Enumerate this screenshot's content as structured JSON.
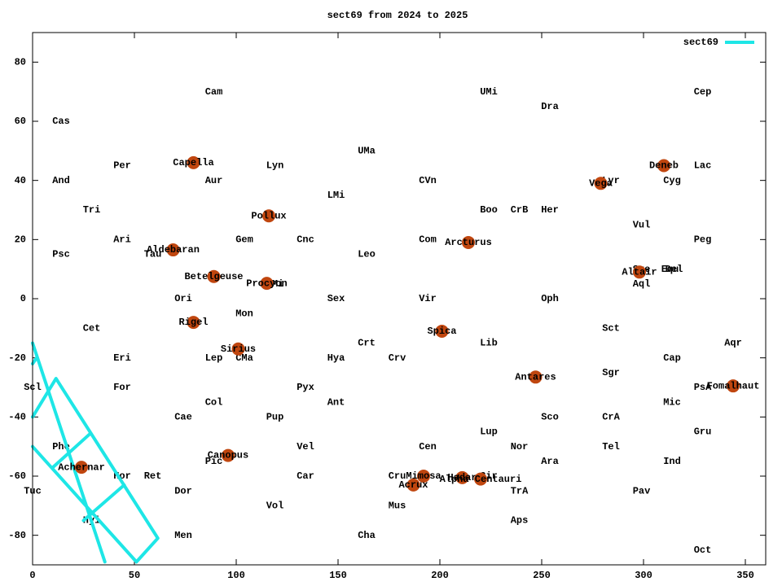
{
  "chart_data": {
    "type": "scatter",
    "title": "sect69 from 2024 to 2025",
    "xlim": [
      0,
      360
    ],
    "ylim": [
      -90,
      90
    ],
    "xticks": [
      0,
      50,
      100,
      150,
      200,
      250,
      300,
      350
    ],
    "yticks": [
      -80,
      -60,
      -40,
      -20,
      0,
      20,
      40,
      60,
      80
    ],
    "legend": "top-right",
    "series": [
      {
        "name": "sect69",
        "color": "#1ee6e6",
        "x": [
          0,
          35.5,
          null,
          0,
          51,
          61.5,
          11.5,
          0,
          null,
          28.5,
          10,
          null,
          45,
          25,
          null,
          0,
          2
        ],
        "values": [
          -15,
          -89,
          null,
          -50,
          -89,
          -81,
          -27,
          -40,
          null,
          -45.5,
          -57,
          null,
          -63,
          -75,
          null,
          -22,
          -20
        ]
      }
    ],
    "stars": {
      "color": "#c0460f",
      "labels": [
        "Capella",
        "Deneb",
        "Vega",
        "Pollux",
        "Arcturus",
        "Aldebaran",
        "Altair",
        "Betelgeuse",
        "Procyon",
        "Rigel",
        "Spica",
        "Sirius",
        "Antares",
        "Fomalhaut",
        "Canopus",
        "Achernar",
        "Mimosa",
        "Hadar",
        "Alpha Centauri",
        "Acrux"
      ],
      "x": [
        79,
        310,
        279,
        116,
        214,
        69,
        298,
        89,
        115,
        79,
        201,
        101,
        247,
        344,
        96,
        24,
        192,
        211,
        220,
        187
      ],
      "values": [
        46,
        45,
        39,
        28,
        19,
        16.5,
        9,
        7.5,
        5.2,
        -8,
        -11,
        -17,
        -26.5,
        -29.5,
        -53,
        -57,
        -60,
        -60.5,
        -61,
        -63
      ]
    },
    "constellations": {
      "labels": [
        "Cam",
        "UMi",
        "Cep",
        "Dra",
        "Cas",
        "UMa",
        "Per",
        "Lac",
        "Lyn",
        "And",
        "Aur",
        "CVn",
        "Lyr",
        "Cyg",
        "LMi",
        "Tri",
        "Boo",
        "CrB",
        "Her",
        "Vul",
        "Ari",
        "Gem",
        "Cnc",
        "Com",
        "Peg",
        "Psc",
        "Tau",
        "Leo",
        "Sge",
        "Del",
        "Equ",
        "Aql",
        "CMi",
        "Ori",
        "Sex",
        "Vir",
        "Oph",
        "Mon",
        "Cet",
        "Sct",
        "Crt",
        "Lib",
        "Aqr",
        "Eri",
        "Lep",
        "CMa",
        "Hya",
        "Crv",
        "Cap",
        "Sgr",
        "Scl",
        "For",
        "Pyx",
        "PsA",
        "Col",
        "Ant",
        "Mic",
        "Cae",
        "Pup",
        "Sco",
        "CrA",
        "Lup",
        "Gru",
        "Phe",
        "Vel",
        "Cen",
        "Nor",
        "Tel",
        "Pic",
        "Ara",
        "Ind",
        "Hor",
        "Ret",
        "Car",
        "Cru",
        "Cir",
        "Tuc",
        "Dor",
        "TrA",
        "Pav",
        "Mus",
        "Vol",
        "Hyi",
        "Aps",
        "Men",
        "Cha",
        "Oct"
      ],
      "x": [
        89,
        224,
        329,
        254,
        14,
        164,
        44,
        329,
        119,
        14,
        89,
        194,
        284,
        314,
        149,
        29,
        224,
        239,
        254,
        299,
        44,
        104,
        134,
        194,
        329,
        14,
        59,
        164,
        299,
        315,
        313,
        299,
        119,
        74,
        149,
        194,
        254,
        104,
        29,
        284,
        164,
        224,
        344,
        44,
        89,
        104,
        149,
        179,
        314,
        284,
        0,
        44,
        134,
        329,
        89,
        149,
        314,
        74,
        119,
        254,
        284,
        224,
        329,
        14,
        134,
        194,
        239,
        284,
        89,
        254,
        314,
        44,
        59,
        134,
        179,
        224,
        0,
        74,
        239,
        299,
        179,
        119,
        29,
        239,
        74,
        164,
        329
      ],
      "y": [
        70,
        70,
        70,
        65,
        60,
        50,
        45,
        45,
        45,
        40,
        40,
        40,
        40,
        40,
        35,
        30,
        30,
        30,
        30,
        25,
        20,
        20,
        20,
        20,
        20,
        15,
        15,
        15,
        10,
        10,
        10,
        5,
        5,
        0,
        0,
        0,
        0,
        -5,
        -10,
        -10,
        -15,
        -15,
        -15,
        -20,
        -20,
        -20,
        -20,
        -20,
        -20,
        -25,
        -30,
        -30,
        -30,
        -30,
        -35,
        -35,
        -35,
        -40,
        -40,
        -40,
        -40,
        -45,
        -45,
        -50,
        -50,
        -50,
        -50,
        -50,
        -55,
        -55,
        -55,
        -60,
        -60,
        -60,
        -60,
        -60,
        -65,
        -65,
        -65,
        -65,
        -70,
        -70,
        -75,
        -75,
        -80,
        -80,
        -85
      ]
    }
  }
}
